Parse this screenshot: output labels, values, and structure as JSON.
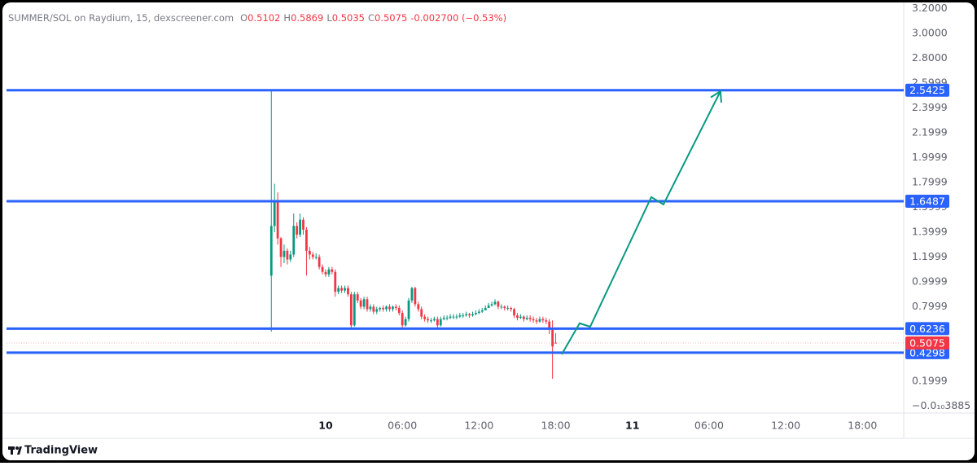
{
  "chart_data": {
    "type": "candlestick",
    "title": "SUMMER/SOL on Raydium, 15, dexscreener.com",
    "ohlc_labels": [
      "O",
      "H",
      "L",
      "C"
    ],
    "change": "-0.002700 (−0.53%)",
    "up_color": "#089981",
    "down_color": "#f23645",
    "x": [
      -4.25,
      -4,
      -3.75,
      -3.5,
      -3.25,
      -3,
      -2.75,
      -2.5,
      -2.25,
      -2,
      -1.75,
      -1.5,
      -1.25,
      -1,
      -0.75,
      -0.5,
      -0.25,
      0,
      0.25,
      0.5,
      0.75,
      1,
      1.25,
      1.5,
      1.75,
      2,
      2.25,
      2.5,
      2.75,
      3,
      3.25,
      3.5,
      3.75,
      4,
      4.25,
      4.5,
      4.75,
      5,
      5.25,
      5.5,
      5.75,
      6,
      6.25,
      6.5,
      6.75,
      7,
      7.25,
      7.5,
      7.75,
      8,
      8.25,
      8.5,
      8.75,
      9,
      9.25,
      9.5,
      9.75,
      10,
      10.25,
      10.5,
      10.75,
      11,
      11.25,
      11.5,
      11.75,
      12,
      12.25,
      12.5,
      12.75,
      13,
      13.25,
      13.5,
      13.75,
      14,
      14.25,
      14.5,
      14.75,
      15,
      15.25,
      15.5,
      15.75,
      16,
      16.25,
      16.5,
      16.75,
      17,
      17.25,
      17.5,
      17.75,
      18
    ],
    "open": [
      1.05,
      1.45,
      1.65,
      1.35,
      1.2,
      1.25,
      1.18,
      1.22,
      1.45,
      1.38,
      1.5,
      1.42,
      1.25,
      1.22,
      1.2,
      1.2,
      1.12,
      1.08,
      1.06,
      1.1,
      1.08,
      0.92,
      0.95,
      0.93,
      0.95,
      0.9,
      0.65,
      0.9,
      0.85,
      0.8,
      0.86,
      0.78,
      0.8,
      0.76,
      0.78,
      0.79,
      0.78,
      0.8,
      0.78,
      0.8,
      0.79,
      0.75,
      0.65,
      0.7,
      0.85,
      0.95,
      0.82,
      0.78,
      0.72,
      0.7,
      0.69,
      0.69,
      0.7,
      0.65,
      0.7,
      0.71,
      0.71,
      0.72,
      0.72,
      0.72,
      0.73,
      0.73,
      0.74,
      0.73,
      0.74,
      0.75,
      0.76,
      0.77,
      0.79,
      0.81,
      0.82,
      0.84,
      0.8,
      0.8,
      0.79,
      0.79,
      0.78,
      0.73,
      0.71,
      0.72,
      0.7,
      0.71,
      0.7,
      0.69,
      0.68,
      0.7,
      0.69,
      0.68,
      0.62,
      0.5102
    ],
    "high": [
      2.54,
      1.79,
      1.72,
      1.36,
      1.3,
      1.27,
      1.25,
      1.55,
      1.48,
      1.55,
      1.52,
      1.44,
      1.28,
      1.24,
      1.23,
      1.22,
      1.14,
      1.1,
      1.12,
      1.12,
      1.1,
      0.97,
      0.97,
      0.97,
      0.97,
      0.92,
      0.92,
      0.92,
      0.87,
      0.88,
      0.88,
      0.82,
      0.82,
      0.8,
      0.8,
      0.81,
      0.81,
      0.82,
      0.81,
      0.82,
      0.81,
      0.77,
      0.72,
      0.87,
      0.96,
      0.96,
      0.84,
      0.8,
      0.74,
      0.72,
      0.71,
      0.72,
      0.72,
      0.72,
      0.73,
      0.73,
      0.74,
      0.74,
      0.74,
      0.75,
      0.75,
      0.76,
      0.75,
      0.76,
      0.77,
      0.78,
      0.79,
      0.81,
      0.83,
      0.84,
      0.86,
      0.85,
      0.82,
      0.81,
      0.81,
      0.8,
      0.79,
      0.75,
      0.74,
      0.73,
      0.73,
      0.73,
      0.72,
      0.71,
      0.72,
      0.72,
      0.71,
      0.7,
      0.69,
      0.5869
    ],
    "low": [
      0.6,
      1.4,
      1.3,
      1.12,
      1.15,
      1.14,
      1.16,
      1.2,
      1.35,
      1.36,
      1.38,
      1.05,
      1.18,
      1.18,
      1.18,
      1.1,
      1.06,
      1.04,
      1.04,
      1.06,
      0.88,
      0.9,
      0.91,
      0.91,
      0.88,
      0.63,
      0.64,
      0.83,
      0.78,
      0.78,
      0.76,
      0.76,
      0.74,
      0.74,
      0.76,
      0.76,
      0.76,
      0.76,
      0.76,
      0.77,
      0.73,
      0.63,
      0.64,
      0.68,
      0.83,
      0.8,
      0.76,
      0.7,
      0.68,
      0.67,
      0.67,
      0.68,
      0.62,
      0.64,
      0.69,
      0.69,
      0.7,
      0.7,
      0.7,
      0.71,
      0.71,
      0.72,
      0.71,
      0.72,
      0.73,
      0.74,
      0.75,
      0.77,
      0.79,
      0.8,
      0.81,
      0.78,
      0.78,
      0.77,
      0.77,
      0.76,
      0.71,
      0.69,
      0.7,
      0.68,
      0.69,
      0.68,
      0.67,
      0.66,
      0.67,
      0.67,
      0.66,
      0.58,
      0.22,
      0.5035
    ],
    "close": [
      1.45,
      1.65,
      1.35,
      1.2,
      1.25,
      1.18,
      1.22,
      1.45,
      1.38,
      1.5,
      1.42,
      1.25,
      1.22,
      1.2,
      1.2,
      1.12,
      1.08,
      1.06,
      1.1,
      1.08,
      0.92,
      0.95,
      0.93,
      0.95,
      0.9,
      0.65,
      0.9,
      0.85,
      0.8,
      0.86,
      0.78,
      0.8,
      0.76,
      0.78,
      0.79,
      0.78,
      0.8,
      0.78,
      0.8,
      0.79,
      0.75,
      0.65,
      0.7,
      0.85,
      0.95,
      0.82,
      0.78,
      0.72,
      0.7,
      0.69,
      0.69,
      0.7,
      0.65,
      0.7,
      0.71,
      0.71,
      0.72,
      0.72,
      0.72,
      0.73,
      0.73,
      0.74,
      0.73,
      0.74,
      0.75,
      0.76,
      0.77,
      0.79,
      0.81,
      0.82,
      0.84,
      0.8,
      0.8,
      0.79,
      0.79,
      0.78,
      0.73,
      0.71,
      0.72,
      0.7,
      0.71,
      0.7,
      0.69,
      0.68,
      0.7,
      0.69,
      0.68,
      0.62,
      0.48,
      0.5075
    ],
    "xlim": [
      -24.97,
      45.23
    ],
    "xticks": [
      {
        "value": 0,
        "label": "10"
      },
      {
        "value": 6,
        "label": "06:00"
      },
      {
        "value": 12,
        "label": "12:00"
      },
      {
        "value": 18,
        "label": "18:00"
      },
      {
        "value": 24,
        "label": "11"
      },
      {
        "value": 30,
        "label": "06:00"
      },
      {
        "value": 36,
        "label": "12:00"
      },
      {
        "value": 42,
        "label": "18:00"
      }
    ],
    "ylim": [
      -0.043,
      3.216
    ],
    "yticks": [
      {
        "value": 3.2,
        "label": "3.2000"
      },
      {
        "value": 3,
        "label": "3.0000"
      },
      {
        "value": 2.8,
        "label": "2.8000"
      },
      2.5999,
      2.3999,
      2.1999,
      1.9999,
      1.7999,
      1.5999,
      1.3999,
      1.1999,
      0.9999,
      0.7999,
      0.1999,
      {
        "value": -3.885e-11,
        "label": "−0.0₁₀3885"
      }
    ],
    "levels": [
      2.5425,
      1.6487,
      0.6236,
      0.4298
    ],
    "level_color": "#2962ff",
    "projection": {
      "color": "#089981",
      "x": [
        18.47,
        19.87,
        20.7,
        25.48,
        26.43,
        30.89
      ],
      "y": [
        0.416,
        0.666,
        0.639,
        1.682,
        1.623,
        2.534
      ]
    }
  },
  "footer": {
    "brand": "TradingView"
  }
}
